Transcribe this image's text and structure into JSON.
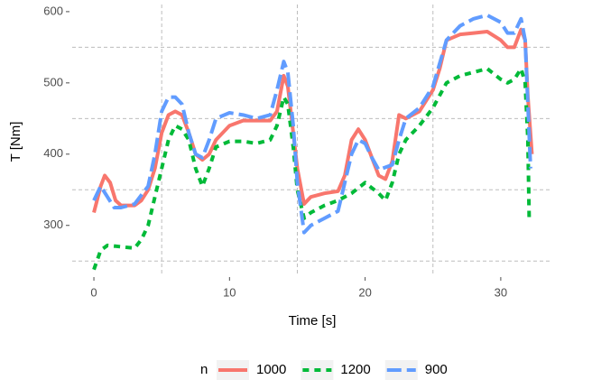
{
  "chart_data": {
    "type": "line",
    "xlabel": "Time [s]",
    "ylabel": "T [Nm]",
    "legend_title": "n",
    "legend": "bottom",
    "xlim": [
      -1.6,
      33.8
    ],
    "ylim": [
      230,
      610
    ],
    "xticks": [
      0,
      10,
      20,
      30
    ],
    "yticks": [
      300,
      400,
      500,
      600
    ],
    "xgrid": [
      5,
      15,
      25
    ],
    "ygrid": [
      250,
      350,
      450,
      550
    ],
    "series": [
      {
        "name": "1000",
        "color": "#F8766D",
        "dash": "solid",
        "x": [
          0,
          0.5,
          0.8,
          1.2,
          1.6,
          2,
          3,
          3.5,
          4,
          4.5,
          5,
          5.5,
          6,
          6.5,
          7,
          7.5,
          8,
          8.5,
          9,
          10,
          11,
          12,
          13,
          13.5,
          14,
          14.3,
          14.7,
          15,
          15.5,
          16,
          17,
          18,
          18.5,
          19,
          19.5,
          20,
          20.5,
          21,
          21.5,
          22,
          22.5,
          23,
          24,
          25,
          25.5,
          26,
          27,
          28,
          29,
          30,
          30.5,
          31,
          31.5,
          31.8,
          32,
          32.3
        ],
        "values": [
          318,
          355,
          370,
          360,
          335,
          328,
          328,
          335,
          350,
          380,
          430,
          455,
          460,
          455,
          430,
          400,
          392,
          400,
          420,
          440,
          447,
          447,
          447,
          460,
          510,
          495,
          430,
          380,
          330,
          340,
          345,
          348,
          370,
          420,
          435,
          420,
          395,
          370,
          365,
          390,
          455,
          450,
          460,
          490,
          520,
          560,
          568,
          570,
          572,
          560,
          550,
          550,
          575,
          560,
          480,
          400
        ]
      },
      {
        "name": "1200",
        "color": "#00BA38",
        "dash": "dotted",
        "x": [
          0,
          0.5,
          1,
          2,
          3,
          3.5,
          4,
          4.5,
          5,
          5.5,
          6,
          6.5,
          7,
          7.5,
          8,
          8.5,
          9,
          10,
          11,
          12,
          13,
          13.5,
          14,
          14.3,
          14.7,
          15,
          15.5,
          16,
          17,
          18,
          19,
          20,
          21,
          21.5,
          22,
          22.5,
          23,
          24,
          25,
          26,
          27,
          28,
          29,
          30,
          30.5,
          31,
          31.5,
          31.8,
          32,
          32.1
        ],
        "values": [
          238,
          265,
          272,
          270,
          268,
          280,
          300,
          340,
          380,
          420,
          440,
          435,
          420,
          380,
          355,
          380,
          410,
          418,
          418,
          415,
          420,
          440,
          480,
          470,
          410,
          350,
          310,
          318,
          328,
          335,
          345,
          360,
          345,
          335,
          360,
          400,
          420,
          440,
          465,
          500,
          510,
          515,
          520,
          505,
          500,
          505,
          520,
          500,
          420,
          305
        ]
      },
      {
        "name": "900",
        "color": "#619CFF",
        "dash": "dashed",
        "x": [
          0,
          0.5,
          1,
          1.5,
          2,
          3,
          4,
          4.5,
          5,
          5.5,
          6,
          6.5,
          7,
          7.5,
          8,
          8.5,
          9,
          10,
          11,
          12,
          13,
          13.5,
          14,
          14.3,
          14.7,
          15,
          15.5,
          16,
          17,
          18,
          18.5,
          19,
          19.5,
          20,
          20.5,
          21,
          22,
          22.5,
          23,
          24,
          25,
          26,
          27,
          28,
          29,
          30,
          30.5,
          31,
          31.5,
          31.8,
          32,
          32.2
        ],
        "values": [
          335,
          355,
          340,
          325,
          325,
          330,
          355,
          400,
          460,
          480,
          480,
          470,
          430,
          400,
          395,
          420,
          450,
          458,
          455,
          450,
          455,
          490,
          530,
          515,
          440,
          360,
          290,
          300,
          310,
          320,
          360,
          400,
          420,
          415,
          395,
          378,
          385,
          420,
          450,
          465,
          495,
          560,
          580,
          590,
          595,
          585,
          570,
          570,
          590,
          560,
          470,
          380
        ]
      }
    ]
  }
}
